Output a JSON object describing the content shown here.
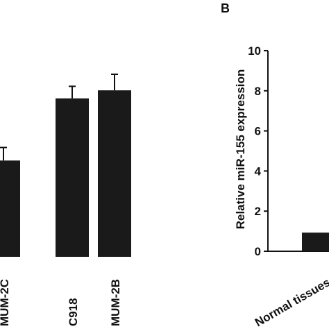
{
  "chart_data": [
    {
      "type": "bar",
      "categories": [
        "MUM-2C",
        "C918",
        "MUM-2B"
      ],
      "values": [
        4.8,
        7.9,
        8.3
      ],
      "errors": [
        0.65,
        0.6,
        0.8
      ],
      "ylim": [
        0,
        10
      ],
      "color": "#1a1a1a"
    },
    {
      "type": "bar",
      "panel_label": "B",
      "y_label": "Relative miR-155 expression",
      "categories": [
        "Normal tissues"
      ],
      "values": [
        0.93
      ],
      "ylim": [
        0,
        10
      ],
      "yticks": [
        0,
        2,
        4,
        6,
        8,
        10
      ],
      "color": "#1a1a1a"
    }
  ]
}
